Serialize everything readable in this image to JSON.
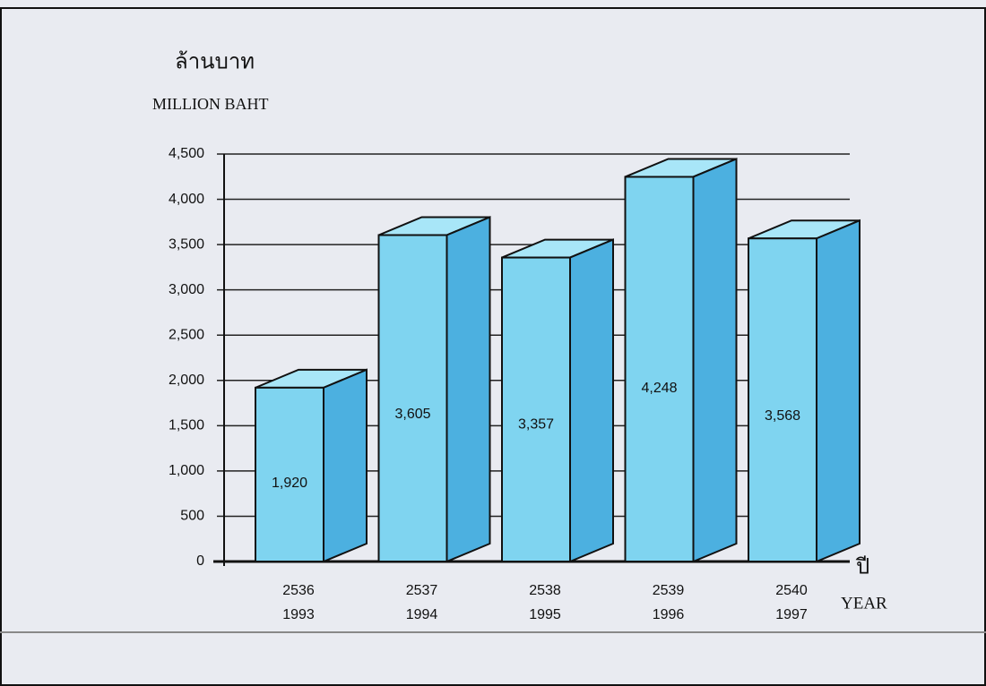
{
  "chart_data": {
    "type": "bar3d",
    "title": "ล้านบาท",
    "subtitle": "MILLION BAHT",
    "x_axis_label": "ปี",
    "x_axis_label_en": "YEAR",
    "categories": [
      [
        "2536",
        "1993"
      ],
      [
        "2537",
        "1994"
      ],
      [
        "2538",
        "1995"
      ],
      [
        "2539",
        "1996"
      ],
      [
        "2540",
        "1997"
      ]
    ],
    "values": [
      1920,
      3605,
      3357,
      4248,
      3568
    ],
    "value_labels": [
      "1,920",
      "3,605",
      "3,357",
      "4,248",
      "3,568"
    ],
    "color": "#7fd4f0",
    "ylim": [
      0,
      4500
    ],
    "yticks": [
      0,
      500,
      {
        "value": 1000,
        "label": "1,000"
      },
      {
        "value": 1500,
        "label": "1,500"
      },
      {
        "value": 2000,
        "label": "2,000"
      },
      {
        "value": 2500,
        "label": "2,500"
      },
      {
        "value": 3000,
        "label": "3,000"
      },
      {
        "value": 3500,
        "label": "3,500"
      },
      {
        "value": 4000,
        "label": "4,000"
      },
      {
        "value": 4500,
        "label": "4,500"
      }
    ],
    "grid": true
  }
}
